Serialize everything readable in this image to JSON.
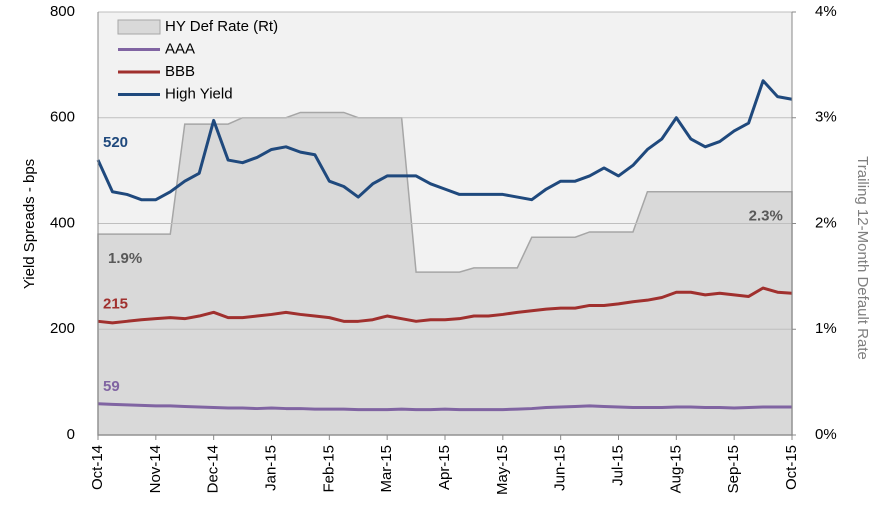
{
  "chart_data": {
    "type": "line",
    "categories": [
      "Oct-14",
      null,
      null,
      null,
      "Nov-14",
      null,
      null,
      null,
      "Dec-14",
      null,
      null,
      null,
      "Jan-15",
      null,
      null,
      null,
      "Feb-15",
      null,
      null,
      null,
      "Mar-15",
      null,
      null,
      null,
      "Apr-15",
      null,
      null,
      null,
      "May-15",
      null,
      null,
      null,
      "Jun-15",
      null,
      null,
      null,
      "Jul-15",
      null,
      null,
      null,
      "Aug-15",
      null,
      null,
      null,
      "Sep-15",
      null,
      null,
      null,
      "Oct-15"
    ],
    "ylabel": "Yield Spreads - bps",
    "y2label": "Trailing 12-Month Default Rate",
    "ylim": [
      0,
      800
    ],
    "yticks": [
      0,
      200,
      400,
      600,
      800
    ],
    "y2lim": [
      0,
      4
    ],
    "y2ticks": [
      {
        "value": 0,
        "label": "0%"
      },
      {
        "value": 1,
        "label": "1%"
      },
      {
        "value": 2,
        "label": "2%"
      },
      {
        "value": 3,
        "label": "3%"
      },
      {
        "value": 4,
        "label": "4%"
      }
    ],
    "grid": true,
    "legend": "top-left",
    "series": [
      {
        "name": "HY Def Rate (Rt)",
        "color": "#d9d9d9",
        "style": "area",
        "axis": "y2",
        "values": [
          1.9,
          1.9,
          1.9,
          1.9,
          1.9,
          1.9,
          2.94,
          2.94,
          2.94,
          2.94,
          3.0,
          3.0,
          3.0,
          3.0,
          3.05,
          3.05,
          3.05,
          3.05,
          3.0,
          3.0,
          3.0,
          3.0,
          1.54,
          1.54,
          1.54,
          1.54,
          1.58,
          1.58,
          1.58,
          1.58,
          1.87,
          1.87,
          1.87,
          1.87,
          1.92,
          1.92,
          1.92,
          1.92,
          2.3,
          2.3,
          2.3,
          2.3,
          2.3,
          2.3,
          2.3,
          2.3,
          2.3,
          2.3,
          2.3
        ],
        "value_labels": [
          "1.9%",
          null,
          null,
          null,
          null,
          null,
          null,
          null,
          null,
          null,
          null,
          null,
          null,
          null,
          null,
          null,
          null,
          null,
          null,
          null,
          null,
          null,
          null,
          null,
          null,
          null,
          null,
          null,
          null,
          null,
          null,
          null,
          null,
          null,
          null,
          null,
          null,
          null,
          null,
          null,
          null,
          null,
          null,
          null,
          null,
          "2.3%",
          null,
          null,
          null
        ],
        "label_color": "#595959"
      },
      {
        "name": "AAA",
        "color": "#8064a2",
        "style": "line",
        "values": [
          59,
          58,
          57,
          56,
          55,
          55,
          54,
          53,
          52,
          51,
          51,
          50,
          51,
          50,
          50,
          49,
          49,
          49,
          48,
          48,
          48,
          49,
          48,
          48,
          49,
          48,
          48,
          48,
          48,
          49,
          50,
          52,
          53,
          54,
          55,
          54,
          53,
          52,
          52,
          52,
          53,
          53,
          52,
          52,
          51,
          52,
          53,
          53,
          53
        ]
      },
      {
        "name": "BBB",
        "color": "#a0302e",
        "style": "line",
        "values": [
          215,
          212,
          215,
          218,
          220,
          222,
          220,
          225,
          232,
          222,
          222,
          225,
          228,
          232,
          228,
          225,
          222,
          215,
          215,
          218,
          225,
          220,
          215,
          218,
          218,
          220,
          225,
          225,
          228,
          232,
          235,
          238,
          240,
          240,
          245,
          245,
          248,
          252,
          255,
          260,
          270,
          270,
          265,
          268,
          265,
          262,
          278,
          270,
          268
        ]
      },
      {
        "name": "High Yield",
        "color": "#1f497d",
        "style": "line",
        "values": [
          520,
          460,
          455,
          445,
          445,
          460,
          480,
          495,
          595,
          520,
          515,
          525,
          540,
          545,
          535,
          530,
          480,
          470,
          450,
          475,
          490,
          490,
          490,
          475,
          465,
          455,
          455,
          455,
          455,
          450,
          445,
          465,
          480,
          480,
          490,
          505,
          490,
          510,
          540,
          560,
          600,
          560,
          545,
          555,
          575,
          590,
          670,
          640,
          635
        ]
      }
    ]
  }
}
